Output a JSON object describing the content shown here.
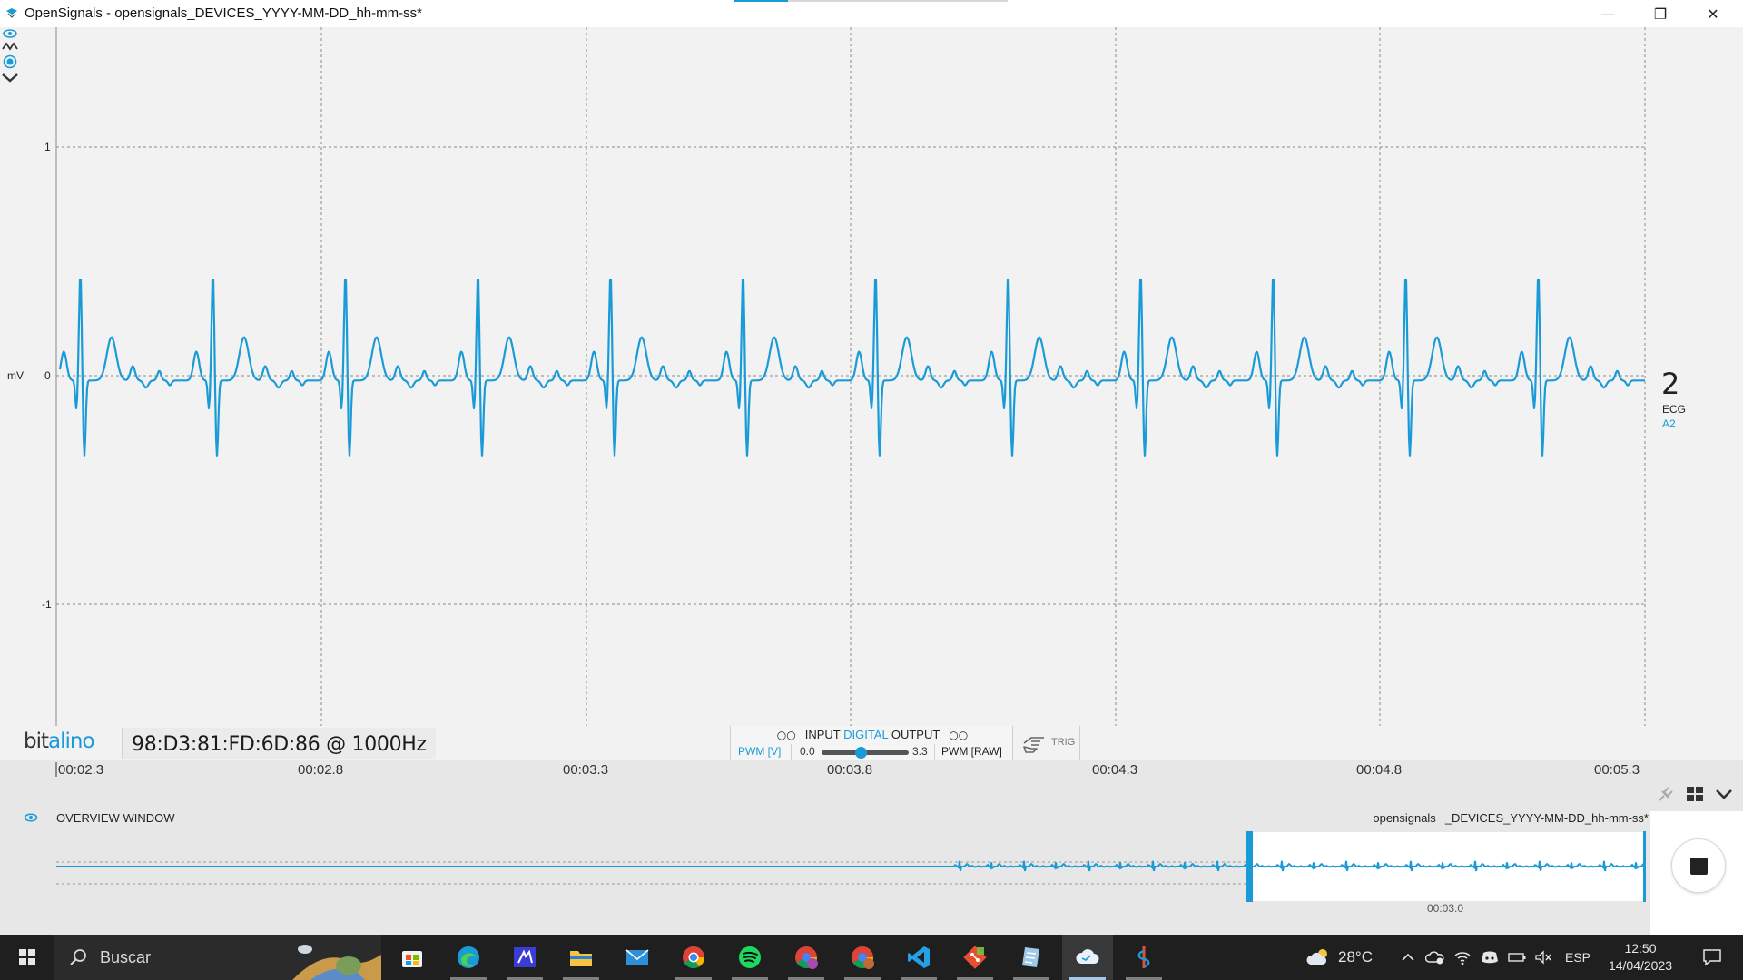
{
  "window": {
    "title": "OpenSignals - opensignals_DEVICES_YYYY-MM-DD_hh-mm-ss*",
    "minimize_glyph": "—",
    "restore_glyph": "❐",
    "close_glyph": "✕"
  },
  "plot": {
    "y_unit": "mV",
    "y_ticks": [
      "1",
      "0",
      "-1"
    ],
    "line_color": "#1a9bd7"
  },
  "channel": {
    "number": "2",
    "type": "ECG",
    "pin": "A2",
    "icons": [
      "eye-icon",
      "signal-wave-icon",
      "record-dot-icon",
      "chevron-down-icon"
    ]
  },
  "device": {
    "logo_prefix": "bit",
    "logo_suffix": "alino",
    "id_rate": "98:D3:81:FD:6D:86 @ 1000Hz"
  },
  "io_panel": {
    "input_label": "INPUT",
    "digital_label": "DIGITAL",
    "output_label": "OUTPUT",
    "input_circles": "○○",
    "output_circles": "○○",
    "pwm_v": "PWM [V]",
    "pwm_min": "0.0",
    "pwm_max": "3.3",
    "pwm_raw": "PWM [RAW]",
    "slider_value": 0.45,
    "trig_label": "TRIG"
  },
  "timeline": {
    "x_ticks": [
      "00:02.3",
      "00:02.8",
      "00:03.3",
      "00:03.8",
      "00:04.3",
      "00:04.8",
      "00:05.3"
    ]
  },
  "overview": {
    "title": "OVERVIEW WINDOW",
    "file_prefix": "opensignals",
    "file_name": "_DEVICES_YYYY-MM-DD_hh-mm-ss*",
    "window_time": "00:03.0"
  },
  "taskbar": {
    "search_label": "Buscar",
    "apps": [
      "store-icon",
      "edge-icon",
      "vs-icon",
      "file-explorer-icon",
      "mail-icon",
      "chrome-icon",
      "spotify-icon",
      "chrome-profile-m-icon",
      "chrome-profile-m2-icon",
      "vscode-icon",
      "git-icon",
      "notes-icon",
      "cloud-app-icon",
      "opensignals-icon"
    ],
    "weather": "28°C",
    "language": "ESP",
    "time": "12:50",
    "date": "14/04/2023"
  }
}
